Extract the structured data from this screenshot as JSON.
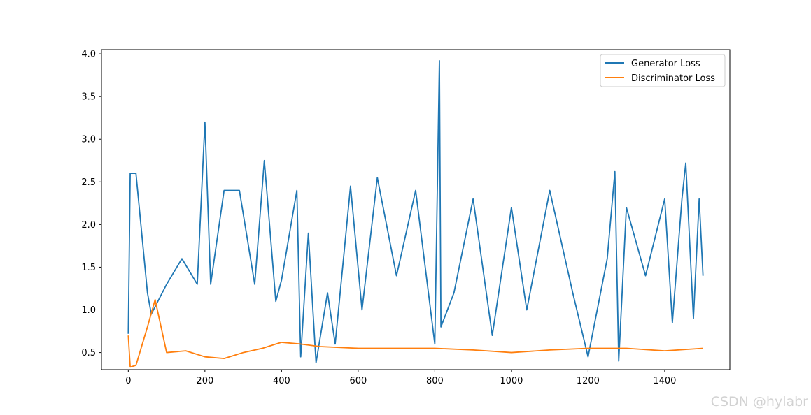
{
  "chart_data": {
    "type": "line",
    "title": "",
    "xlabel": "",
    "ylabel": "",
    "xlim": [
      -70,
      1570
    ],
    "ylim": [
      0.3,
      4.05
    ],
    "x_ticks": [
      0,
      200,
      400,
      600,
      800,
      1000,
      1200,
      1400
    ],
    "y_ticks": [
      0.5,
      1.0,
      1.5,
      2.0,
      2.5,
      3.0,
      3.5,
      4.0
    ],
    "grid": false,
    "legend_position": "top-right",
    "series": [
      {
        "name": "Generator Loss",
        "color": "#1f77b4",
        "x": [
          0,
          5,
          20,
          50,
          60,
          100,
          140,
          180,
          200,
          215,
          250,
          290,
          330,
          355,
          385,
          400,
          440,
          450,
          470,
          490,
          520,
          540,
          580,
          610,
          650,
          700,
          750,
          800,
          812,
          816,
          850,
          900,
          950,
          1000,
          1040,
          1100,
          1160,
          1200,
          1250,
          1270,
          1280,
          1300,
          1350,
          1400,
          1420,
          1445,
          1455,
          1475,
          1490,
          1500
        ],
        "y": [
          0.72,
          2.6,
          2.6,
          1.2,
          0.95,
          1.3,
          1.6,
          1.3,
          3.2,
          1.3,
          2.4,
          2.4,
          1.3,
          2.75,
          1.1,
          1.35,
          2.4,
          0.45,
          1.9,
          0.38,
          1.2,
          0.6,
          2.45,
          1.0,
          2.55,
          1.4,
          2.4,
          0.6,
          3.92,
          0.8,
          1.2,
          2.3,
          0.7,
          2.2,
          1.0,
          2.4,
          1.2,
          0.45,
          1.6,
          2.62,
          0.4,
          2.2,
          1.4,
          2.3,
          0.85,
          2.3,
          2.72,
          0.9,
          2.3,
          1.4
        ]
      },
      {
        "name": "Discriminator Loss",
        "color": "#ff7f0e",
        "x": [
          0,
          5,
          20,
          50,
          70,
          100,
          150,
          200,
          250,
          300,
          350,
          400,
          450,
          500,
          600,
          700,
          800,
          900,
          1000,
          1100,
          1200,
          1300,
          1400,
          1500
        ],
        "y": [
          0.7,
          0.33,
          0.35,
          0.8,
          1.12,
          0.5,
          0.52,
          0.45,
          0.43,
          0.5,
          0.55,
          0.62,
          0.6,
          0.57,
          0.55,
          0.55,
          0.55,
          0.53,
          0.5,
          0.53,
          0.55,
          0.55,
          0.52,
          0.55
        ]
      }
    ]
  },
  "watermark": "CSDN @hylabr"
}
